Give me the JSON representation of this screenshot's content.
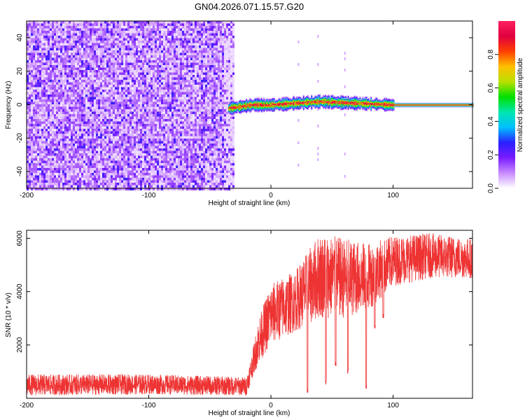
{
  "title": "GN04.2026.071.15.57.G20",
  "chart_data": [
    {
      "type": "heatmap",
      "xlabel": "Height of straight line (km)",
      "ylabel": "Frequency (Hz)",
      "xlim": [
        -200,
        165
      ],
      "ylim": [
        -50,
        50
      ],
      "x_ticks": [
        -200,
        -100,
        0,
        100
      ],
      "y_ticks": [
        -40,
        -20,
        0,
        20,
        40
      ],
      "colorbar": {
        "label": "Normalized spectral amplitude",
        "range": [
          0.0,
          1.0
        ],
        "ticks": [
          0.0,
          0.2,
          0.4,
          0.6,
          0.8
        ],
        "colormap": [
          "#ffffff",
          "#c98cff",
          "#7a1cff",
          "#2a20ff",
          "#00bfff",
          "#00e6b0",
          "#00e000",
          "#b8e000",
          "#ffc000",
          "#ff4000",
          "#e00040",
          "#ff2060"
        ]
      },
      "features": {
        "noise_region_x": [
          -200,
          -30
        ],
        "signal_band": [
          {
            "x": -35,
            "freq": -2
          },
          {
            "x": -15,
            "freq": 0
          },
          {
            "x": 0,
            "freq": 0
          },
          {
            "x": 20,
            "freq": 1
          },
          {
            "x": 40,
            "freq": 2
          },
          {
            "x": 70,
            "freq": 1
          },
          {
            "x": 100,
            "freq": 0
          },
          {
            "x": 165,
            "freq": 0
          }
        ]
      }
    },
    {
      "type": "line",
      "xlabel": "Height of straight line (km)",
      "ylabel": "SNR (10 * v/v)",
      "xlim": [
        -200,
        165
      ],
      "ylim": [
        0,
        6300
      ],
      "x_ticks": [
        -200,
        -100,
        0,
        100
      ],
      "y_ticks": [
        2000,
        4000,
        6000
      ],
      "color": "#ee3333",
      "series_profile": [
        {
          "x": -200,
          "y_low": 100,
          "y_high": 900
        },
        {
          "x": -100,
          "y_low": 150,
          "y_high": 900
        },
        {
          "x": -20,
          "y_low": 100,
          "y_high": 800
        },
        {
          "x": -15,
          "y_low": 800,
          "y_high": 1800
        },
        {
          "x": -10,
          "y_low": 1300,
          "y_high": 3000
        },
        {
          "x": 0,
          "y_low": 2000,
          "y_high": 4300
        },
        {
          "x": 20,
          "y_low": 2500,
          "y_high": 4800
        },
        {
          "x": 40,
          "y_low": 3000,
          "y_high": 6200
        },
        {
          "x": 60,
          "y_low": 3000,
          "y_high": 6000
        },
        {
          "x": 80,
          "y_low": 3300,
          "y_high": 5800
        },
        {
          "x": 100,
          "y_low": 4200,
          "y_high": 6100
        },
        {
          "x": 130,
          "y_low": 4500,
          "y_high": 6200
        },
        {
          "x": 165,
          "y_low": 4500,
          "y_high": 6000
        }
      ],
      "dips": [
        {
          "x": 30,
          "y": 200
        },
        {
          "x": 45,
          "y": 500
        },
        {
          "x": 53,
          "y": 1200
        },
        {
          "x": 63,
          "y": 900
        },
        {
          "x": 78,
          "y": 300
        },
        {
          "x": 85,
          "y": 2600
        },
        {
          "x": 92,
          "y": 3000
        }
      ]
    }
  ]
}
